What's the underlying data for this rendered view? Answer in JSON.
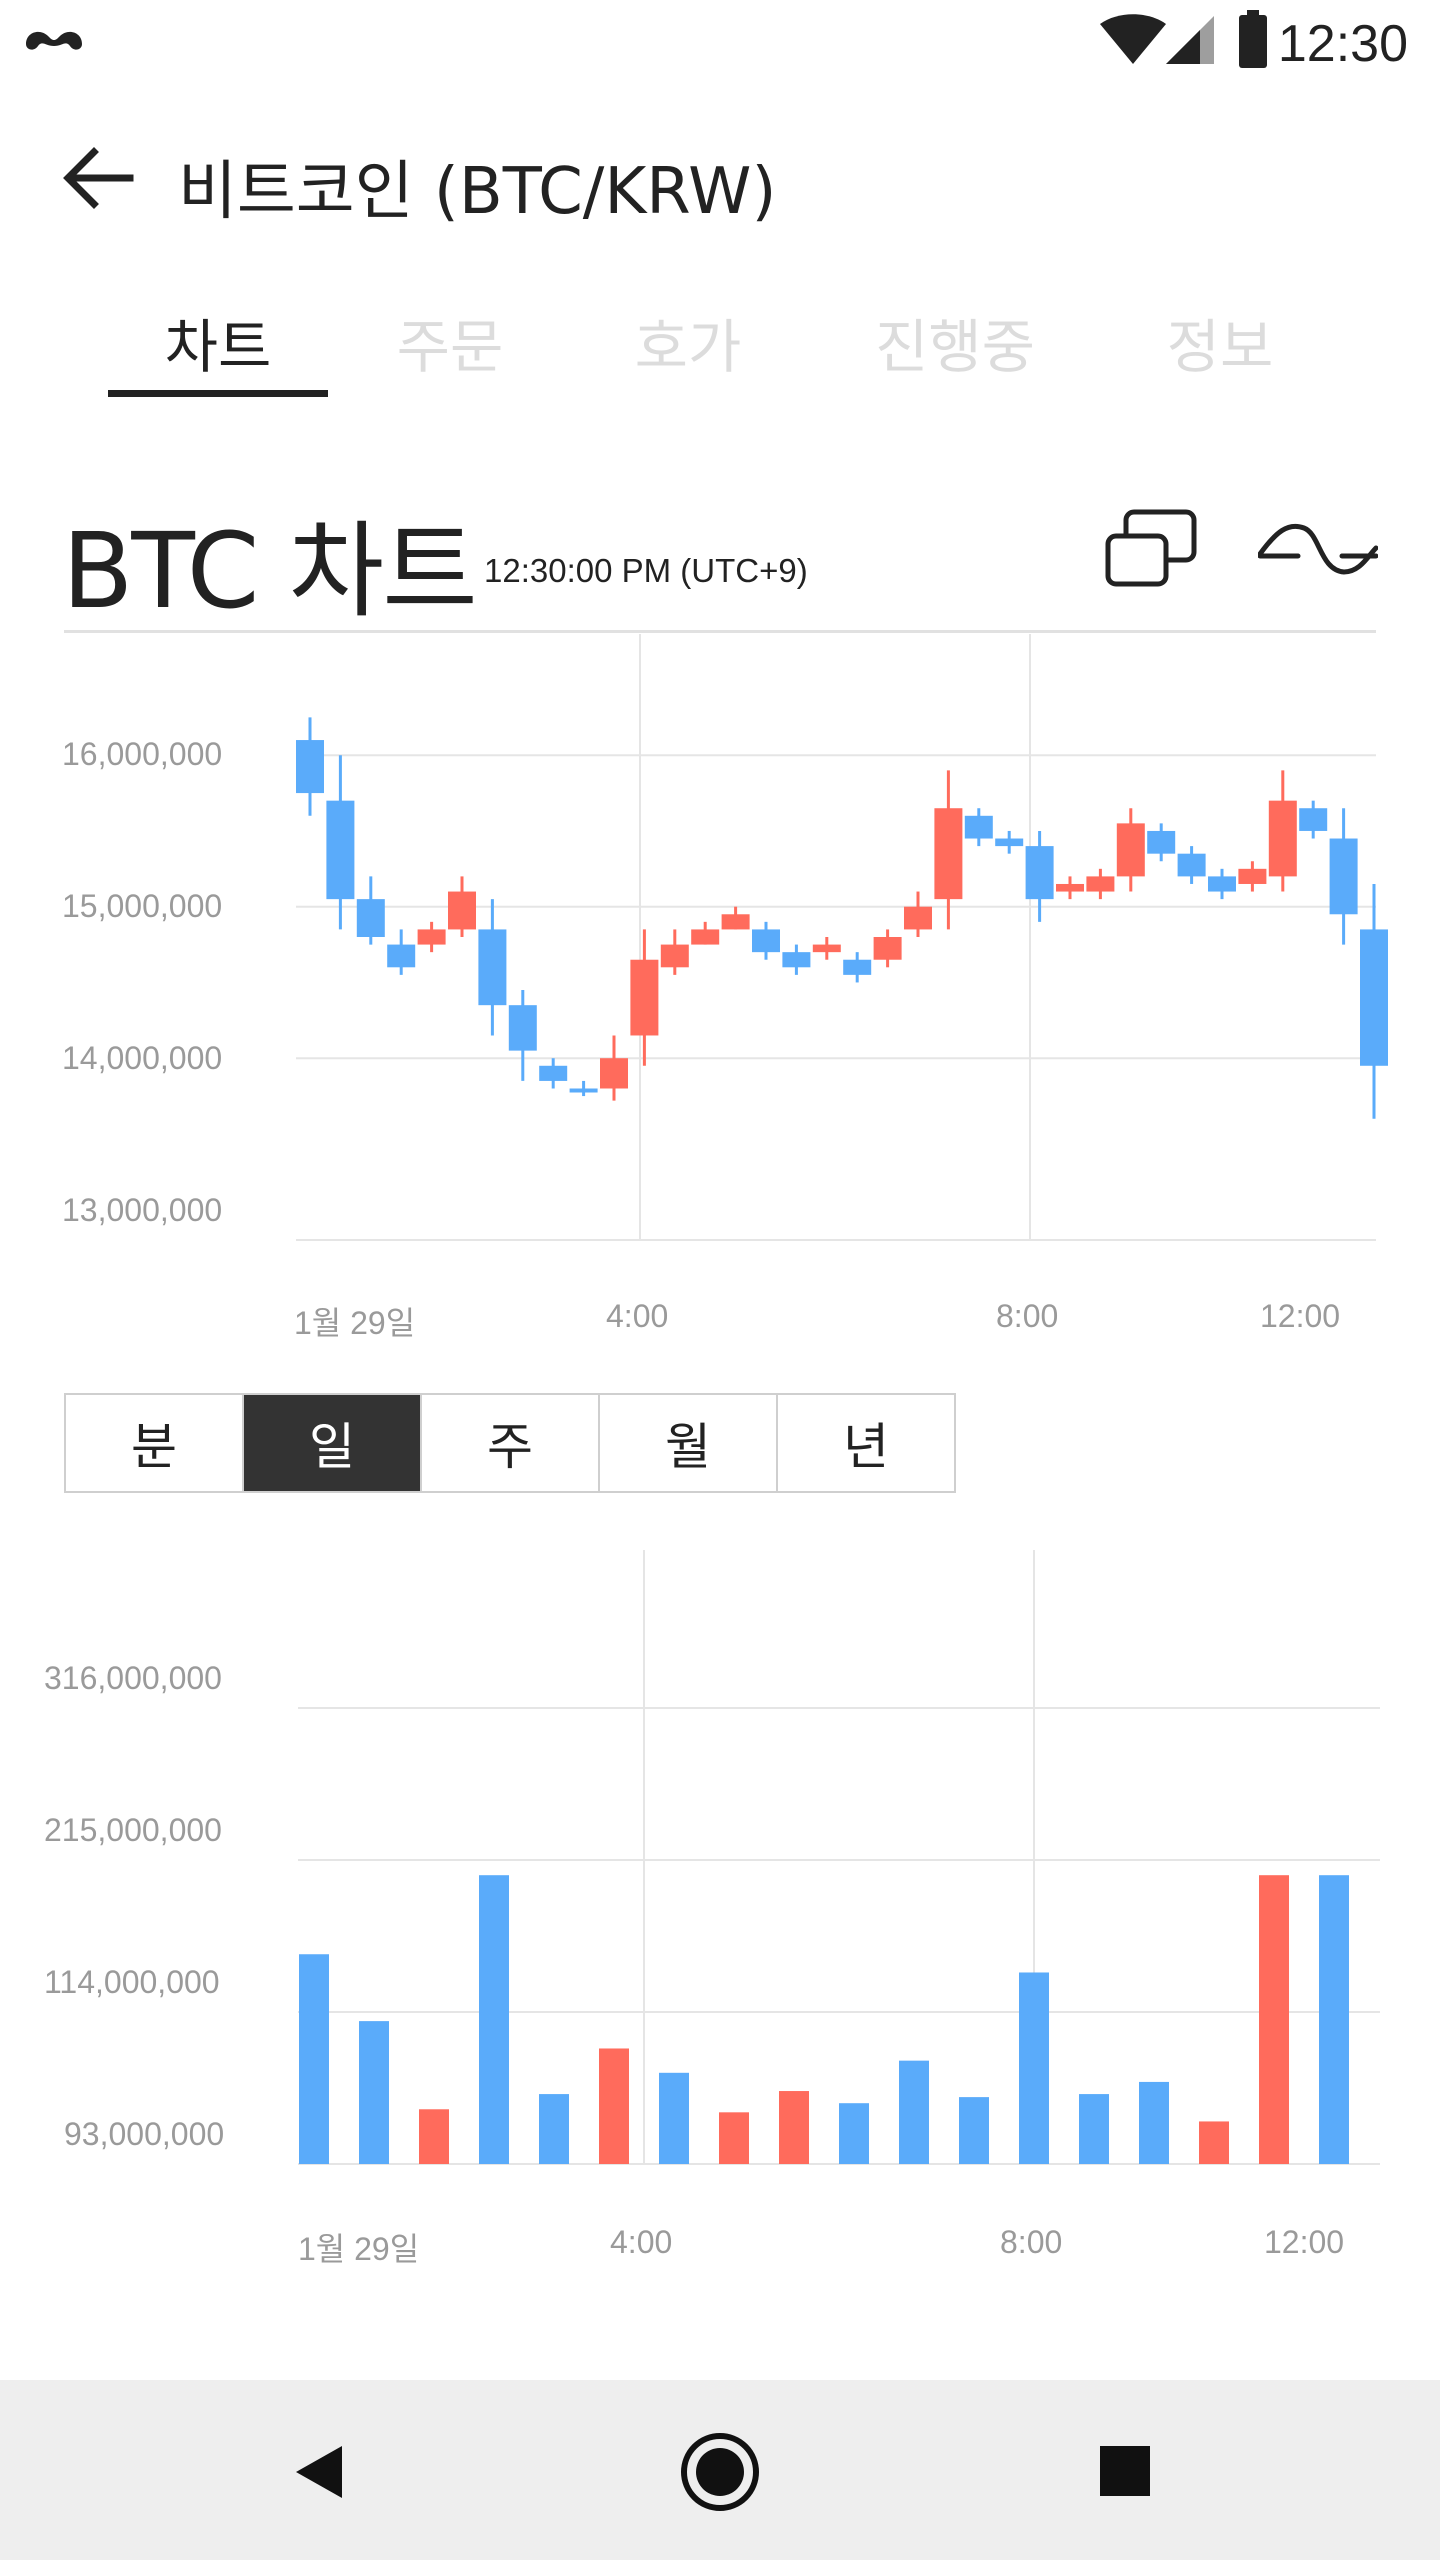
{
  "status_bar": {
    "time": "12:30"
  },
  "header": {
    "title": "비트코인 (BTC/KRW)"
  },
  "tabs": [
    {
      "label": "차트",
      "active": true
    },
    {
      "label": "주문",
      "active": false
    },
    {
      "label": "호가",
      "active": false
    },
    {
      "label": "진행중",
      "active": false
    },
    {
      "label": "정보",
      "active": false
    }
  ],
  "chart_header": {
    "title": "BTC 차트",
    "time": "12:30:00 PM (UTC+9)"
  },
  "periods": [
    {
      "label": "분",
      "active": false
    },
    {
      "label": "일",
      "active": true
    },
    {
      "label": "주",
      "active": false
    },
    {
      "label": "월",
      "active": false
    },
    {
      "label": "년",
      "active": false
    }
  ],
  "colors": {
    "up": "#ff6b5c",
    "down": "#5aabfa",
    "grid": "#e5e5e5",
    "axis_text": "#9a9a9a"
  },
  "icons": {
    "app": "mustache-icon",
    "layout": "windows-icon",
    "indicator": "wave-icon"
  },
  "chart_data": [
    {
      "type": "candlestick",
      "title": "",
      "ylim": [
        12800000,
        16800000
      ],
      "y_ticks": [
        "16,000,000",
        "15,000,000",
        "14,000,000",
        "13,000,000"
      ],
      "x_ticks": [
        "1월 29일",
        "4:00",
        "8:00",
        "12:00"
      ],
      "candles": [
        {
          "o": 16100000,
          "c": 15750000,
          "h": 16250000,
          "l": 15600000
        },
        {
          "o": 15700000,
          "c": 15050000,
          "h": 16000000,
          "l": 14850000
        },
        {
          "o": 15050000,
          "c": 14800000,
          "h": 15200000,
          "l": 14750000
        },
        {
          "o": 14750000,
          "c": 14600000,
          "h": 14850000,
          "l": 14550000
        },
        {
          "o": 14750000,
          "c": 14850000,
          "h": 14900000,
          "l": 14700000
        },
        {
          "o": 14850000,
          "c": 15100000,
          "h": 15200000,
          "l": 14800000
        },
        {
          "o": 14850000,
          "c": 14350000,
          "h": 15050000,
          "l": 14150000
        },
        {
          "o": 14350000,
          "c": 14050000,
          "h": 14450000,
          "l": 13850000
        },
        {
          "o": 13950000,
          "c": 13850000,
          "h": 14000000,
          "l": 13800000
        },
        {
          "o": 13800000,
          "c": 13780000,
          "h": 13850000,
          "l": 13750000
        },
        {
          "o": 13800000,
          "c": 14000000,
          "h": 14150000,
          "l": 13720000
        },
        {
          "o": 14150000,
          "c": 14650000,
          "h": 14850000,
          "l": 13950000
        },
        {
          "o": 14600000,
          "c": 14750000,
          "h": 14850000,
          "l": 14550000
        },
        {
          "o": 14750000,
          "c": 14850000,
          "h": 14900000,
          "l": 14750000
        },
        {
          "o": 14850000,
          "c": 14950000,
          "h": 15000000,
          "l": 14850000
        },
        {
          "o": 14850000,
          "c": 14700000,
          "h": 14900000,
          "l": 14650000
        },
        {
          "o": 14700000,
          "c": 14600000,
          "h": 14750000,
          "l": 14550000
        },
        {
          "o": 14700000,
          "c": 14750000,
          "h": 14800000,
          "l": 14650000
        },
        {
          "o": 14650000,
          "c": 14550000,
          "h": 14700000,
          "l": 14500000
        },
        {
          "o": 14650000,
          "c": 14800000,
          "h": 14850000,
          "l": 14600000
        },
        {
          "o": 14850000,
          "c": 15000000,
          "h": 15100000,
          "l": 14800000
        },
        {
          "o": 15050000,
          "c": 15650000,
          "h": 15900000,
          "l": 14850000
        },
        {
          "o": 15600000,
          "c": 15450000,
          "h": 15650000,
          "l": 15400000
        },
        {
          "o": 15450000,
          "c": 15400000,
          "h": 15500000,
          "l": 15350000
        },
        {
          "o": 15400000,
          "c": 15050000,
          "h": 15500000,
          "l": 14900000
        },
        {
          "o": 15100000,
          "c": 15150000,
          "h": 15200000,
          "l": 15050000
        },
        {
          "o": 15100000,
          "c": 15200000,
          "h": 15250000,
          "l": 15050000
        },
        {
          "o": 15200000,
          "c": 15550000,
          "h": 15650000,
          "l": 15100000
        },
        {
          "o": 15500000,
          "c": 15350000,
          "h": 15550000,
          "l": 15300000
        },
        {
          "o": 15350000,
          "c": 15200000,
          "h": 15400000,
          "l": 15150000
        },
        {
          "o": 15200000,
          "c": 15100000,
          "h": 15250000,
          "l": 15050000
        },
        {
          "o": 15150000,
          "c": 15250000,
          "h": 15300000,
          "l": 15100000
        },
        {
          "o": 15200000,
          "c": 15700000,
          "h": 15900000,
          "l": 15100000
        },
        {
          "o": 15650000,
          "c": 15500000,
          "h": 15700000,
          "l": 15450000
        },
        {
          "o": 15450000,
          "c": 14950000,
          "h": 15650000,
          "l": 14750000
        },
        {
          "o": 14850000,
          "c": 13950000,
          "h": 15150000,
          "l": 13600000
        }
      ]
    },
    {
      "type": "bar",
      "title": "",
      "y_ticks": [
        "316,000,000",
        "215,000,000",
        "114,000,000",
        "93,000,000"
      ],
      "x_ticks": [
        "1월 29일",
        "4:00",
        "8:00",
        "12:00"
      ],
      "values": [
        0.69,
        0.47,
        0.18,
        0.95,
        0.23,
        0.38,
        0.3,
        0.17,
        0.24,
        0.2,
        0.34,
        0.22,
        0.63,
        0.23,
        0.27,
        0.14,
        0.95,
        0.95
      ],
      "directions": [
        "down",
        "down",
        "up",
        "down",
        "down",
        "up",
        "down",
        "up",
        "up",
        "down",
        "down",
        "down",
        "down",
        "down",
        "down",
        "up",
        "up",
        "down"
      ]
    }
  ]
}
